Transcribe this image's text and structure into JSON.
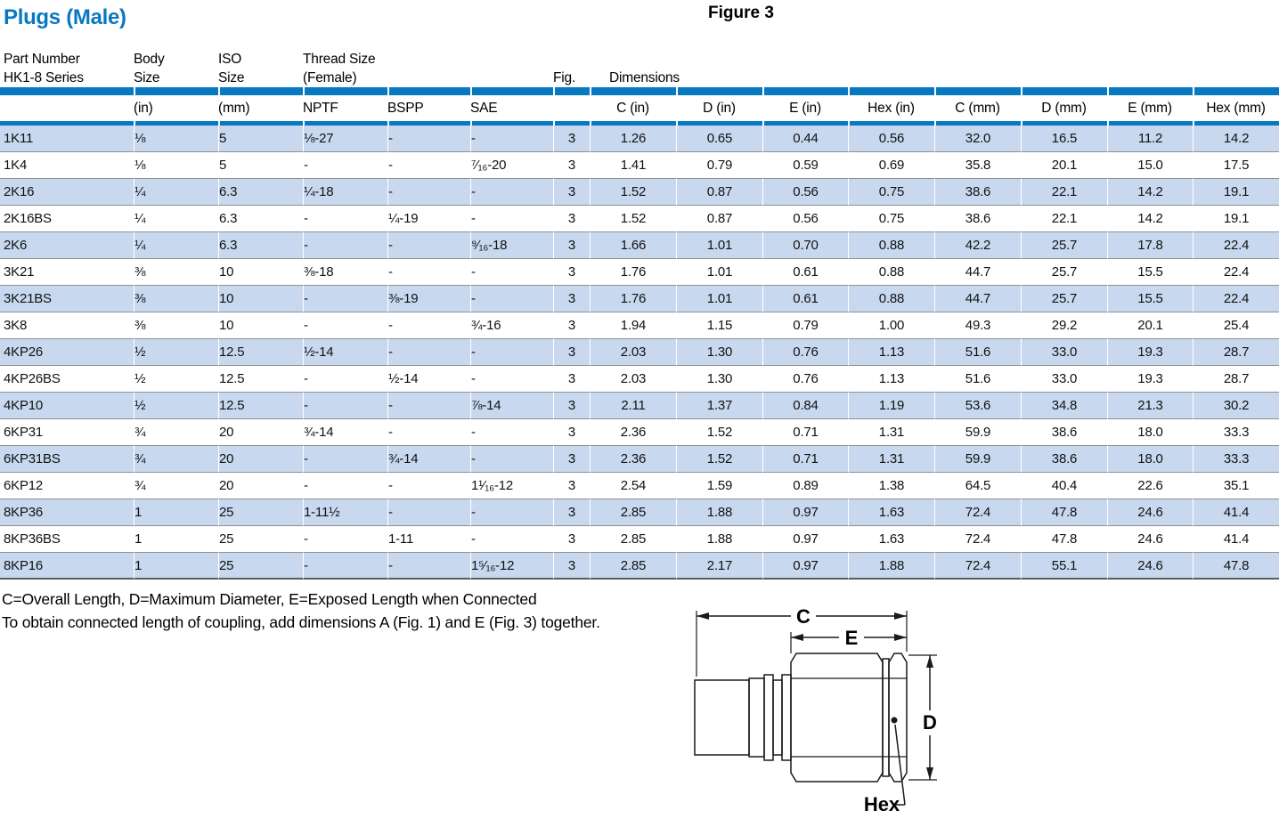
{
  "page": {
    "title": "Plugs (Male)",
    "figure_label": "Figure 3"
  },
  "colors": {
    "accent_blue": "#0879c1",
    "row_shade": "#c8d9ef",
    "separator_gray": "#8f8f8f"
  },
  "table": {
    "col_keys": [
      "part",
      "body_in",
      "iso_mm",
      "nptf",
      "bspp",
      "sae",
      "fig",
      "c_in",
      "d_in",
      "e_in",
      "hex_in",
      "c_mm",
      "d_mm",
      "e_mm",
      "hex_mm"
    ],
    "headers": {
      "part_1": "Part Number",
      "part_2": "HK1-8 Series",
      "body_1": "Body",
      "body_2": "Size",
      "iso_1": "ISO",
      "iso_2": "Size",
      "thread_1": "Thread Size",
      "thread_2": "(Female)",
      "fig": "Fig.",
      "dimensions": "Dimensions"
    },
    "subheaders": {
      "body_in": "(in)",
      "iso_mm": "(mm)",
      "nptf": "NPTF",
      "bspp": "BSPP",
      "sae": "SAE",
      "c_in": "C (in)",
      "d_in": "D (in)",
      "e_in": "E (in)",
      "hex_in": "Hex (in)",
      "c_mm": "C (mm)",
      "d_mm": "D (mm)",
      "e_mm": "E (mm)",
      "hex_mm": "Hex (mm)"
    },
    "rows": [
      [
        "1K11",
        "⅛",
        "5",
        "⅛-27",
        "-",
        "-",
        "3",
        "1.26",
        "0.65",
        "0.44",
        "0.56",
        "32.0",
        "16.5",
        "11.2",
        "14.2"
      ],
      [
        "1K4",
        "⅛",
        "5",
        "-",
        "-",
        "⁷⁄₁₆-20",
        "3",
        "1.41",
        "0.79",
        "0.59",
        "0.69",
        "35.8",
        "20.1",
        "15.0",
        "17.5"
      ],
      [
        "2K16",
        "¼",
        "6.3",
        "¼-18",
        "-",
        "-",
        "3",
        "1.52",
        "0.87",
        "0.56",
        "0.75",
        "38.6",
        "22.1",
        "14.2",
        "19.1"
      ],
      [
        "2K16BS",
        "¼",
        "6.3",
        "-",
        "¼-19",
        "-",
        "3",
        "1.52",
        "0.87",
        "0.56",
        "0.75",
        "38.6",
        "22.1",
        "14.2",
        "19.1"
      ],
      [
        "2K6",
        "¼",
        "6.3",
        "-",
        "-",
        "⁹⁄₁₆-18",
        "3",
        "1.66",
        "1.01",
        "0.70",
        "0.88",
        "42.2",
        "25.7",
        "17.8",
        "22.4"
      ],
      [
        "3K21",
        "⅜",
        "10",
        "⅜-18",
        "-",
        "-",
        "3",
        "1.76",
        "1.01",
        "0.61",
        "0.88",
        "44.7",
        "25.7",
        "15.5",
        "22.4"
      ],
      [
        "3K21BS",
        "⅜",
        "10",
        "-",
        "⅜-19",
        "-",
        "3",
        "1.76",
        "1.01",
        "0.61",
        "0.88",
        "44.7",
        "25.7",
        "15.5",
        "22.4"
      ],
      [
        "3K8",
        "⅜",
        "10",
        "-",
        "-",
        "¾-16",
        "3",
        "1.94",
        "1.15",
        "0.79",
        "1.00",
        "49.3",
        "29.2",
        "20.1",
        "25.4"
      ],
      [
        "4KP26",
        "½",
        "12.5",
        "½-14",
        "-",
        "-",
        "3",
        "2.03",
        "1.30",
        "0.76",
        "1.13",
        "51.6",
        "33.0",
        "19.3",
        "28.7"
      ],
      [
        "4KP26BS",
        "½",
        "12.5",
        "-",
        "½-14",
        "-",
        "3",
        "2.03",
        "1.30",
        "0.76",
        "1.13",
        "51.6",
        "33.0",
        "19.3",
        "28.7"
      ],
      [
        "4KP10",
        "½",
        "12.5",
        "-",
        "-",
        "⅞-14",
        "3",
        "2.11",
        "1.37",
        "0.84",
        "1.19",
        "53.6",
        "34.8",
        "21.3",
        "30.2"
      ],
      [
        "6KP31",
        "¾",
        "20",
        "¾-14",
        "-",
        "-",
        "3",
        "2.36",
        "1.52",
        "0.71",
        "1.31",
        "59.9",
        "38.6",
        "18.0",
        "33.3"
      ],
      [
        "6KP31BS",
        "¾",
        "20",
        "-",
        "¾-14",
        "-",
        "3",
        "2.36",
        "1.52",
        "0.71",
        "1.31",
        "59.9",
        "38.6",
        "18.0",
        "33.3"
      ],
      [
        "6KP12",
        "¾",
        "20",
        "-",
        "-",
        "1¹⁄₁₆-12",
        "3",
        "2.54",
        "1.59",
        "0.89",
        "1.38",
        "64.5",
        "40.4",
        "22.6",
        "35.1"
      ],
      [
        "8KP36",
        "1",
        "25",
        "1-11½",
        "-",
        "-",
        "3",
        "2.85",
        "1.88",
        "0.97",
        "1.63",
        "72.4",
        "47.8",
        "24.6",
        "41.4"
      ],
      [
        "8KP36BS",
        "1",
        "25",
        "-",
        "1-11",
        "-",
        "3",
        "2.85",
        "1.88",
        "0.97",
        "1.63",
        "72.4",
        "47.8",
        "24.6",
        "41.4"
      ],
      [
        "8KP16",
        "1",
        "25",
        "-",
        "-",
        "1⁵⁄₁₆-12",
        "3",
        "2.85",
        "2.17",
        "0.97",
        "1.88",
        "72.4",
        "55.1",
        "24.6",
        "47.8"
      ]
    ]
  },
  "notes": [
    "C=Overall Length, D=Maximum Diameter, E=Exposed Length when Connected",
    "To obtain connected length of coupling, add dimensions A (Fig. 1) and E (Fig. 3) together."
  ],
  "figure": {
    "dim_c": "C",
    "dim_e": "E",
    "dim_d": "D",
    "hex_label": "Hex"
  }
}
